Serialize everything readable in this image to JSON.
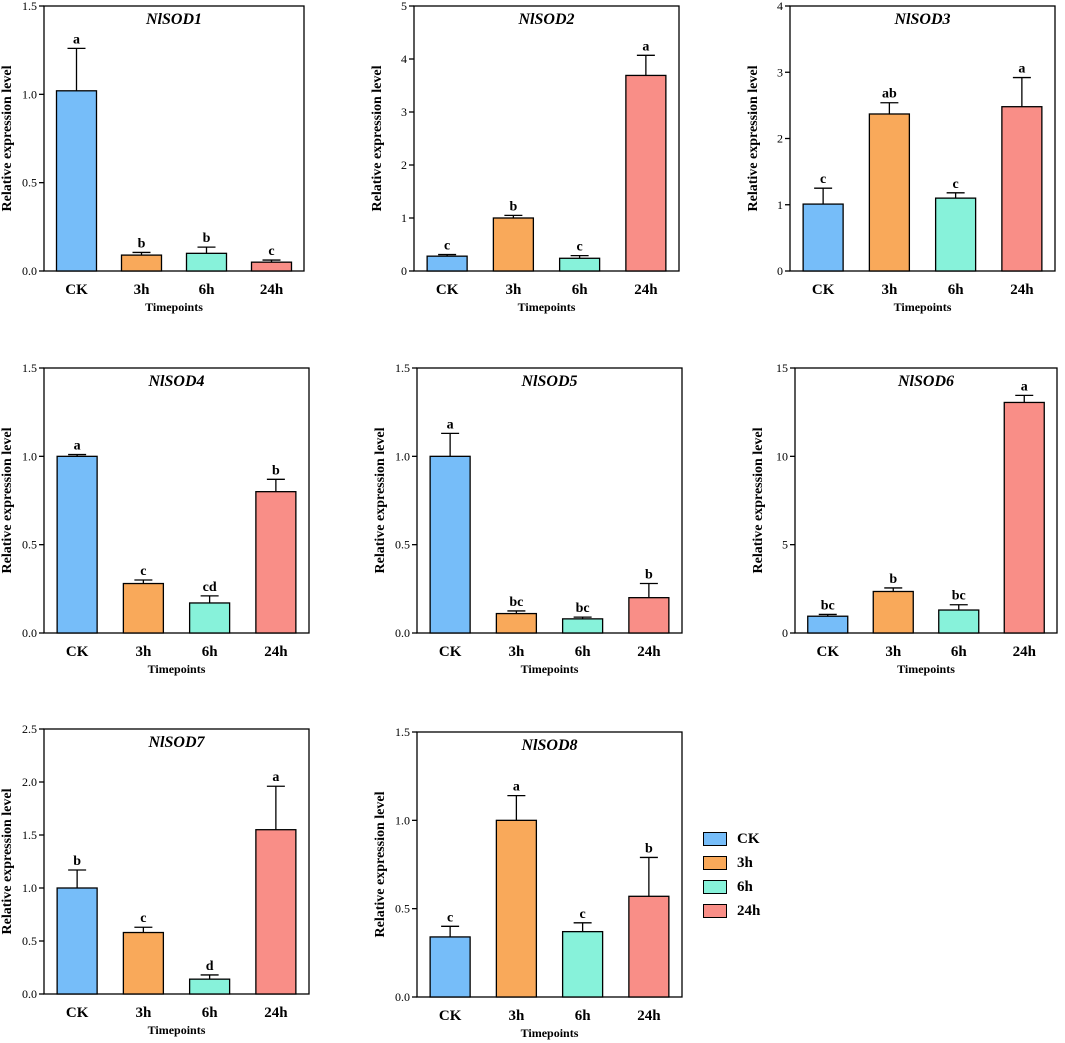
{
  "colors": {
    "CK": "#76BDF9",
    "3h": "#F9A95A",
    "6h": "#87F2DA",
    "24h": "#F98E87"
  },
  "legend": {
    "items": [
      "CK",
      "3h",
      "6h",
      "24h"
    ]
  },
  "chart_data": [
    {
      "type": "bar",
      "title": "NlSOD1",
      "xlabel": "Timepoints",
      "ylabel": "Relative expression level",
      "categories": [
        "CK",
        "3h",
        "6h",
        "24h"
      ],
      "values": [
        1.02,
        0.09,
        0.1,
        0.05
      ],
      "errors": [
        0.24,
        0.015,
        0.035,
        0.012
      ],
      "letters": [
        "a",
        "b",
        "b",
        "c"
      ],
      "ylim": [
        0,
        1.5
      ],
      "yticks": [
        0,
        0.5,
        1.0,
        1.5
      ],
      "yticklabels": [
        "0.0",
        "0.5",
        "1.0",
        "1.5"
      ]
    },
    {
      "type": "bar",
      "title": "NlSOD2",
      "xlabel": "Timepoints",
      "ylabel": "Relative expression level",
      "categories": [
        "CK",
        "3h",
        "6h",
        "24h"
      ],
      "values": [
        0.28,
        1.0,
        0.24,
        3.69
      ],
      "errors": [
        0.03,
        0.05,
        0.05,
        0.38
      ],
      "letters": [
        "c",
        "b",
        "c",
        "a"
      ],
      "ylim": [
        0,
        5
      ],
      "yticks": [
        0,
        1,
        2,
        3,
        4,
        5
      ],
      "yticklabels": [
        "0",
        "1",
        "2",
        "3",
        "4",
        "5"
      ]
    },
    {
      "type": "bar",
      "title": "NlSOD3",
      "xlabel": "Timepoints",
      "ylabel": "Relative expression level",
      "categories": [
        "CK",
        "3h",
        "6h",
        "24h"
      ],
      "values": [
        1.01,
        2.37,
        1.1,
        2.48
      ],
      "errors": [
        0.24,
        0.17,
        0.08,
        0.44
      ],
      "letters": [
        "c",
        "ab",
        "c",
        "a"
      ],
      "ylim": [
        0,
        4
      ],
      "yticks": [
        0,
        1,
        2,
        3,
        4
      ],
      "yticklabels": [
        "0",
        "1",
        "2",
        "3",
        "4"
      ]
    },
    {
      "type": "bar",
      "title": "NlSOD4",
      "xlabel": "Timepoints",
      "ylabel": "Relative expression level",
      "categories": [
        "CK",
        "3h",
        "6h",
        "24h"
      ],
      "values": [
        1.0,
        0.28,
        0.17,
        0.8
      ],
      "errors": [
        0.01,
        0.02,
        0.04,
        0.07
      ],
      "letters": [
        "a",
        "c",
        "cd",
        "b"
      ],
      "ylim": [
        0,
        1.5
      ],
      "yticks": [
        0,
        0.5,
        1.0,
        1.5
      ],
      "yticklabels": [
        "0.0",
        "0.5",
        "1.0",
        "1.5"
      ]
    },
    {
      "type": "bar",
      "title": "NlSOD5",
      "xlabel": "Timepoints",
      "ylabel": "Relative expression level",
      "categories": [
        "CK",
        "3h",
        "6h",
        "24h"
      ],
      "values": [
        1.0,
        0.11,
        0.08,
        0.2
      ],
      "errors": [
        0.13,
        0.015,
        0.01,
        0.08
      ],
      "letters": [
        "a",
        "bc",
        "bc",
        "b"
      ],
      "ylim": [
        0,
        1.5
      ],
      "yticks": [
        0,
        0.5,
        1.0,
        1.5
      ],
      "yticklabels": [
        "0.0",
        "0.5",
        "1.0",
        "1.5"
      ]
    },
    {
      "type": "bar",
      "title": "NlSOD6",
      "xlabel": "Timepoints",
      "ylabel": "Relative expression level",
      "categories": [
        "CK",
        "3h",
        "6h",
        "24h"
      ],
      "values": [
        0.95,
        2.35,
        1.3,
        13.05
      ],
      "errors": [
        0.1,
        0.2,
        0.3,
        0.4
      ],
      "letters": [
        "bc",
        "b",
        "bc",
        "a"
      ],
      "ylim": [
        0,
        15
      ],
      "yticks": [
        0,
        5,
        10,
        15
      ],
      "yticklabels": [
        "0",
        "5",
        "10",
        "15"
      ]
    },
    {
      "type": "bar",
      "title": "NlSOD7",
      "xlabel": "Timepoints",
      "ylabel": "Relative expression level",
      "categories": [
        "CK",
        "3h",
        "6h",
        "24h"
      ],
      "values": [
        1.0,
        0.58,
        0.14,
        1.55
      ],
      "errors": [
        0.17,
        0.05,
        0.04,
        0.41
      ],
      "letters": [
        "b",
        "c",
        "d",
        "a"
      ],
      "ylim": [
        0,
        2.5
      ],
      "yticks": [
        0,
        0.5,
        1.0,
        1.5,
        2.0,
        2.5
      ],
      "yticklabels": [
        "0.0",
        "0.5",
        "1.0",
        "1.5",
        "2.0",
        "2.5"
      ]
    },
    {
      "type": "bar",
      "title": "NlSOD8",
      "xlabel": "Timepoints",
      "ylabel": "Relative expression level",
      "categories": [
        "CK",
        "3h",
        "6h",
        "24h"
      ],
      "values": [
        0.34,
        1.0,
        0.37,
        0.57
      ],
      "errors": [
        0.06,
        0.14,
        0.05,
        0.22
      ],
      "letters": [
        "c",
        "a",
        "c",
        "b"
      ],
      "ylim": [
        0,
        1.5
      ],
      "yticks": [
        0,
        0.5,
        1.0,
        1.5
      ],
      "yticklabels": [
        "0.0",
        "0.5",
        "1.0",
        "1.5"
      ]
    }
  ]
}
